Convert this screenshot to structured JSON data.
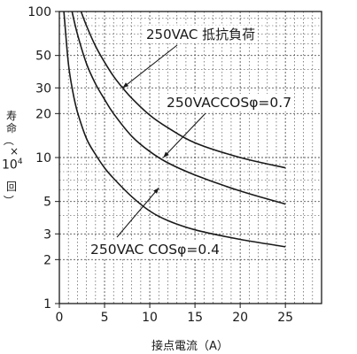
{
  "chart_data": {
    "type": "line",
    "title": "",
    "xlabel": "接点電流（A）",
    "ylabel": {
      "glyph1": "寿",
      "glyph2": "命",
      "paren_open": "（",
      "times": "×",
      "unit_base": "10",
      "unit_exp": "4",
      "glyph3": "回",
      "paren_close": "）"
    },
    "y_scale": "log",
    "xlim": [
      0,
      29
    ],
    "ylim": [
      1,
      100
    ],
    "x_ticks": [
      "0",
      "5",
      "10",
      "15",
      "20",
      "25"
    ],
    "x_tick_values": [
      0,
      5,
      10,
      15,
      20,
      25
    ],
    "y_ticks": [
      "1",
      "2",
      "3",
      "5",
      "10",
      "20",
      "30",
      "50",
      "100"
    ],
    "y_tick_values": [
      1,
      2,
      3,
      5,
      10,
      20,
      30,
      50,
      100
    ],
    "grid": true,
    "series": [
      {
        "name": "250VAC 抵抗負荷",
        "x": [
          2.4,
          3,
          4,
          5,
          6,
          7,
          8,
          10,
          12,
          15,
          20,
          25
        ],
        "y": [
          100,
          80,
          58,
          45,
          36,
          30,
          25.5,
          19.5,
          16,
          12.6,
          10,
          8.5
        ]
      },
      {
        "name": "250VACCOSφ=0.7",
        "x": [
          1.4,
          2,
          3,
          4,
          5,
          6,
          8,
          10,
          12,
          15,
          20,
          25
        ],
        "y": [
          100,
          70,
          44,
          32,
          25,
          20,
          14,
          11,
          9.2,
          7.6,
          5.9,
          4.8
        ]
      },
      {
        "name": "250VAC COSφ=0.4",
        "x": [
          0.5,
          1,
          1.5,
          2,
          3,
          4,
          5,
          6,
          8,
          10,
          12,
          15,
          20,
          25
        ],
        "y": [
          100,
          44,
          28,
          20.5,
          13.5,
          10.5,
          8.5,
          7.2,
          5.4,
          4.3,
          3.7,
          3.2,
          2.75,
          2.45
        ]
      }
    ],
    "annotations": [
      {
        "text": "250VAC 抵抗負荷",
        "series": 0,
        "point": [
          7,
          30
        ]
      },
      {
        "text": "250VACCOSφ=0.7",
        "series": 1,
        "point": [
          11.5,
          10
        ]
      },
      {
        "text": "250VAC COSφ=0.4",
        "series": 2,
        "point": [
          11,
          6.2
        ]
      }
    ]
  }
}
